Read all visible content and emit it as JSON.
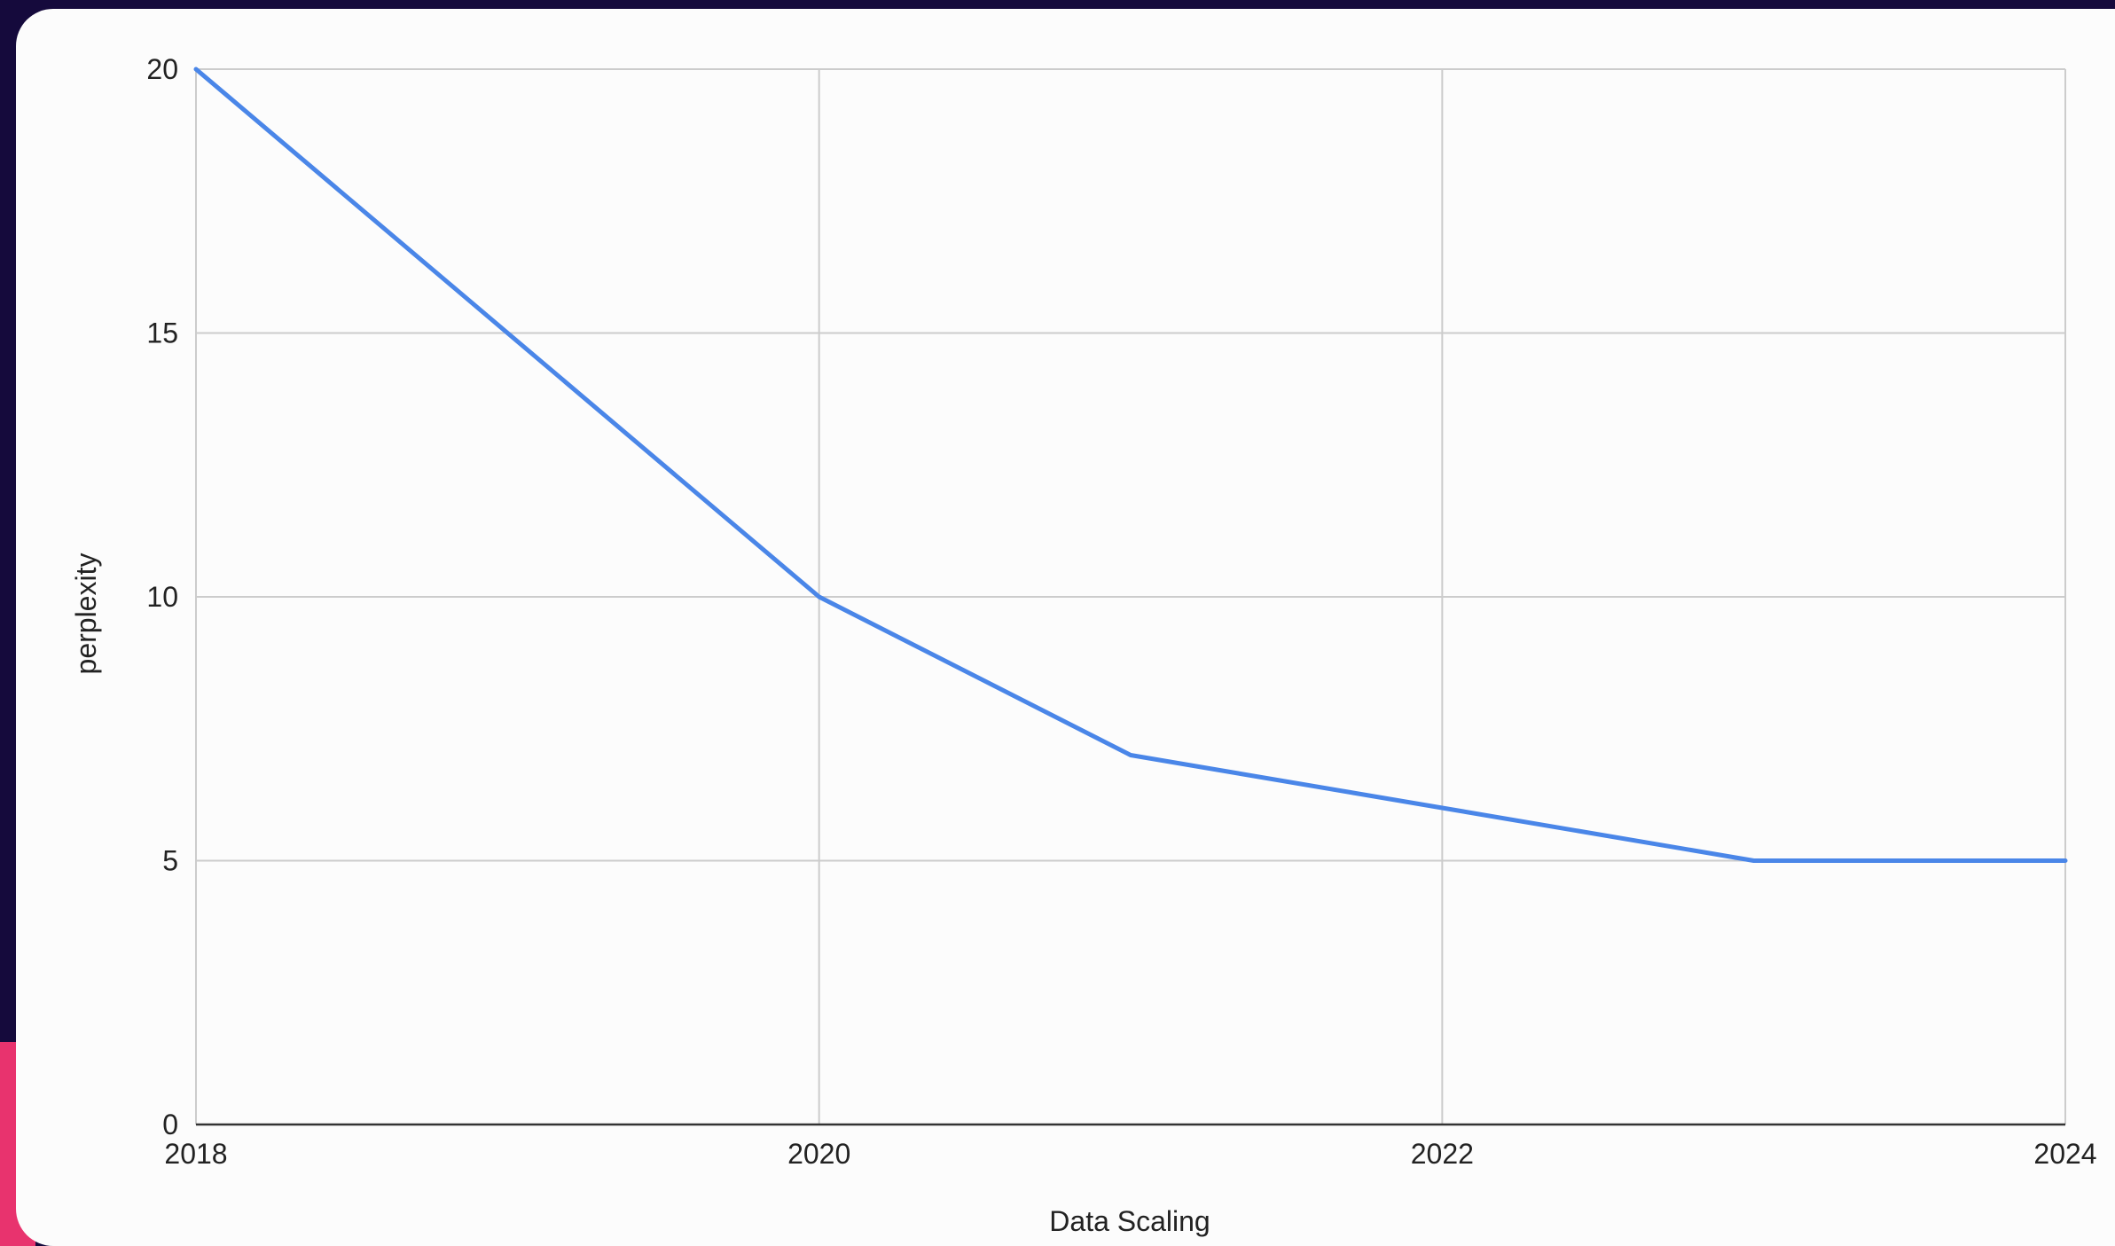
{
  "chart_data": {
    "type": "line",
    "title": "",
    "xlabel": "Data Scaling",
    "ylabel": "perplexity",
    "x": [
      2018,
      2020,
      2021,
      2022,
      2023,
      2024
    ],
    "series": [
      {
        "values": [
          20,
          10,
          7,
          6,
          5,
          5
        ],
        "color": "#4a86e8"
      }
    ],
    "xlim": [
      2018,
      2024
    ],
    "ylim": [
      0,
      20
    ],
    "xticks": [
      "2018",
      "2020",
      "2022",
      "2024"
    ],
    "yticks": [
      "0",
      "5",
      "10",
      "15",
      "20"
    ],
    "grid": true,
    "legend": "none"
  },
  "colors": {
    "background": "#150a3c",
    "card": "#fcfcfc",
    "accent": "#e8336e",
    "line": "#4a86e8",
    "grid": "#cccccc",
    "axis": "#333333"
  }
}
